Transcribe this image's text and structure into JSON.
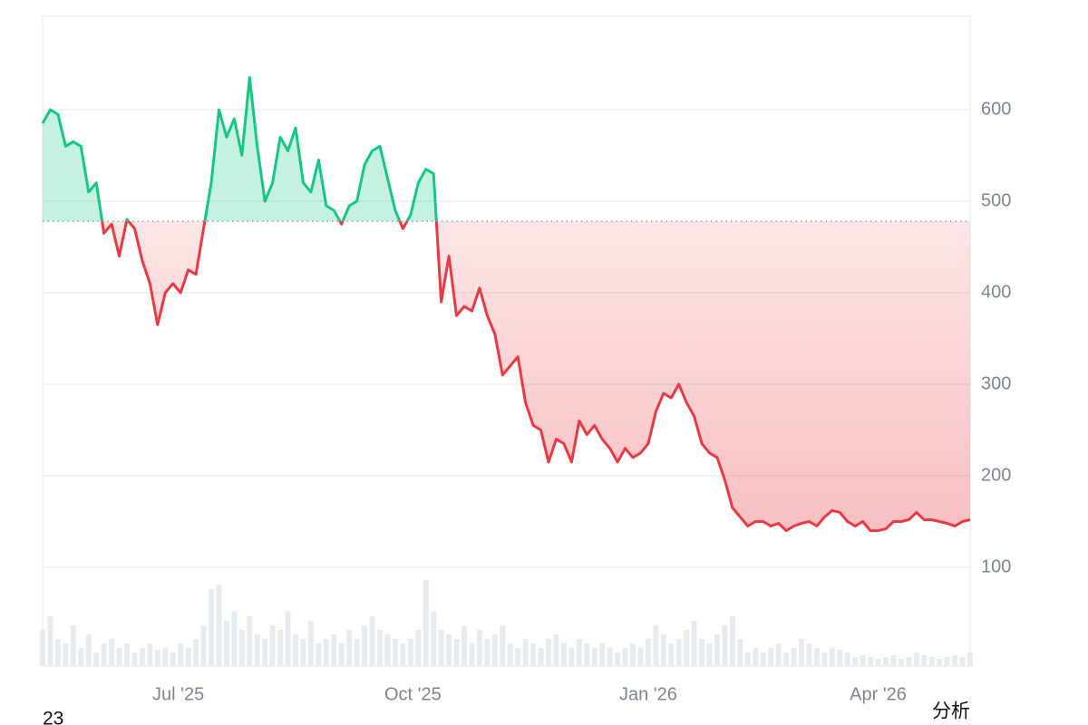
{
  "chart_data": {
    "type": "baseline-line",
    "values": [
      585,
      600,
      595,
      560,
      565,
      560,
      510,
      520,
      465,
      475,
      440,
      480,
      470,
      435,
      410,
      365,
      400,
      410,
      400,
      425,
      420,
      470,
      520,
      600,
      570,
      590,
      550,
      635,
      560,
      500,
      520,
      570,
      555,
      580,
      520,
      510,
      545,
      495,
      490,
      475,
      495,
      500,
      540,
      555,
      560,
      525,
      490,
      470,
      485,
      520,
      535,
      530,
      390,
      440,
      375,
      385,
      380,
      405,
      375,
      355,
      310,
      320,
      330,
      280,
      255,
      250,
      215,
      240,
      235,
      215,
      260,
      245,
      255,
      240,
      230,
      215,
      230,
      220,
      225,
      235,
      270,
      290,
      285,
      300,
      280,
      265,
      235,
      225,
      220,
      195,
      165,
      155,
      145,
      150,
      150,
      145,
      148,
      140,
      145,
      148,
      150,
      145,
      155,
      162,
      160,
      150,
      145,
      150,
      140,
      140,
      142,
      150,
      150,
      152,
      160,
      152,
      152,
      150,
      148,
      145,
      150,
      152
    ],
    "volume": [
      40,
      55,
      30,
      25,
      45,
      20,
      35,
      15,
      25,
      30,
      20,
      25,
      15,
      20,
      25,
      18,
      20,
      15,
      25,
      20,
      30,
      45,
      85,
      90,
      50,
      60,
      40,
      55,
      35,
      30,
      45,
      40,
      60,
      35,
      30,
      50,
      25,
      30,
      35,
      25,
      40,
      30,
      45,
      55,
      40,
      35,
      30,
      25,
      30,
      40,
      95,
      60,
      40,
      35,
      30,
      45,
      25,
      40,
      30,
      35,
      45,
      25,
      20,
      30,
      25,
      20,
      30,
      35,
      25,
      20,
      30,
      25,
      20,
      25,
      20,
      15,
      20,
      25,
      20,
      30,
      45,
      35,
      25,
      30,
      40,
      50,
      30,
      25,
      35,
      45,
      55,
      30,
      15,
      20,
      15,
      20,
      25,
      15,
      20,
      30,
      25,
      20,
      15,
      20,
      18,
      15,
      10,
      12,
      10,
      8,
      10,
      12,
      8,
      10,
      15,
      12,
      10,
      8,
      10,
      12,
      10,
      15
    ],
    "baseline": 478,
    "up_color": "#16c784",
    "down_color": "#ea3943",
    "volume_color": "#e6ebf0",
    "xlim": [
      0,
      121
    ],
    "xticks": [
      {
        "value": 17.7,
        "label": "Jul '25"
      },
      {
        "value": 48.3,
        "label": "Oct '25"
      },
      {
        "value": 79,
        "label": "Jan '26"
      },
      {
        "value": 109,
        "label": "Apr '26"
      }
    ],
    "ylim": [
      0,
      700
    ],
    "yticks": [
      100,
      200,
      300,
      400,
      500,
      600
    ],
    "grid": true
  },
  "footer": {
    "left": "23",
    "right": "分析"
  }
}
